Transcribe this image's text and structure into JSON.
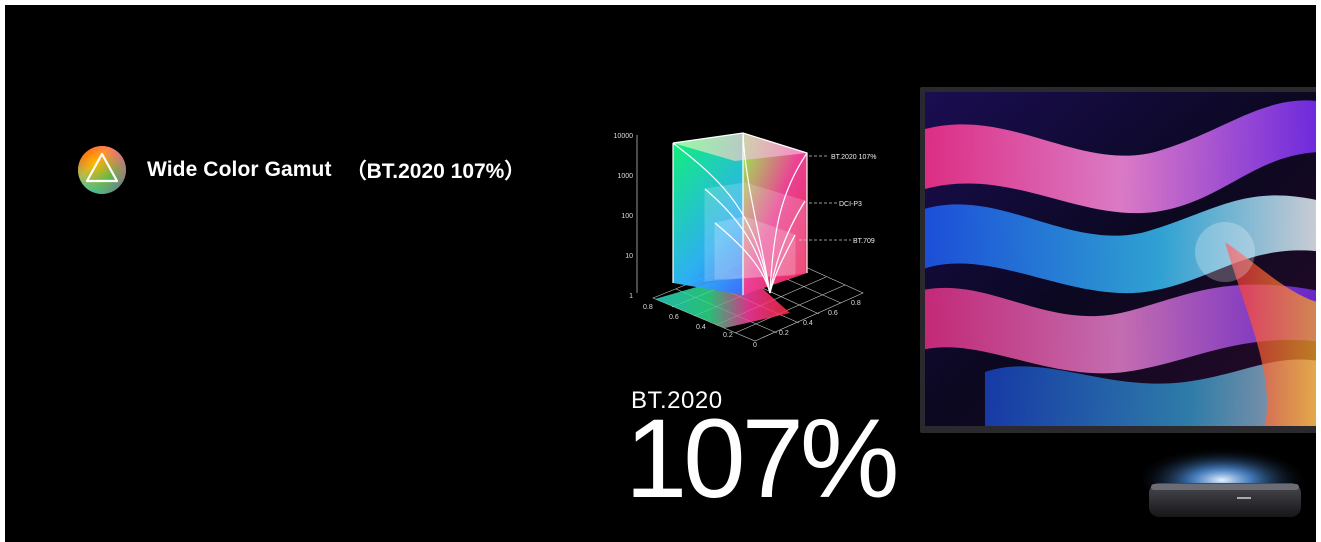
{
  "feature": {
    "icon": "color-gamut-triangle-icon",
    "label": "Wide Color Gamut",
    "spec": "（BT.2020 107%）"
  },
  "gamut_chart": {
    "y_ticks": [
      "10000",
      "1000",
      "100",
      "10",
      "1"
    ],
    "left_axis_ticks": [
      "0.8",
      "0.6",
      "0.4",
      "0.2",
      "0"
    ],
    "right_axis_ticks": [
      "0.2",
      "0.4",
      "0.6",
      "0.8"
    ],
    "standards": [
      "BT.2020 107%",
      "DCI-P3",
      "BT.709"
    ]
  },
  "headline": {
    "standard": "BT.2020",
    "percent": "107%"
  },
  "colors": {
    "background": "#000000",
    "text": "#ffffff"
  }
}
